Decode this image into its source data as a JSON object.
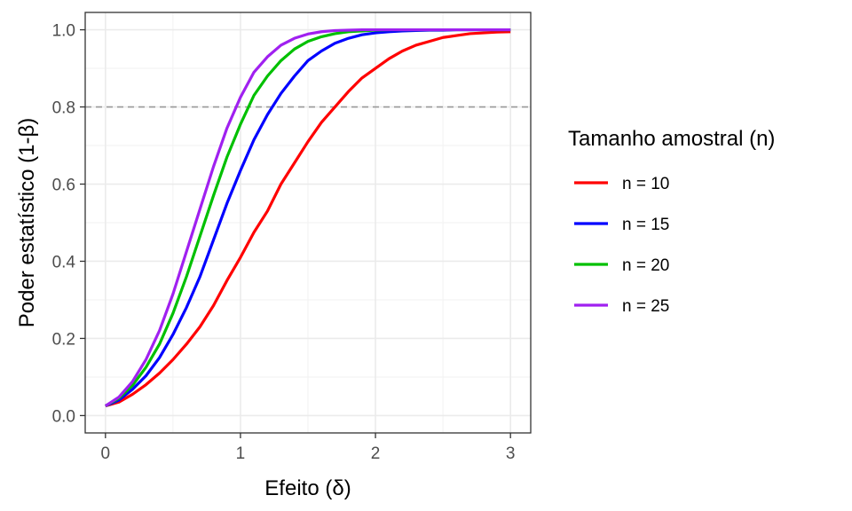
{
  "chart_data": {
    "type": "line",
    "xlabel": "Efeito (δ)",
    "ylabel": "Poder estatístico (1-β)",
    "xlim": [
      -0.15,
      3.15
    ],
    "ylim": [
      -0.045,
      1.045
    ],
    "x_ticks": [
      0,
      1,
      2,
      3
    ],
    "x_tick_labels": [
      "0",
      "1",
      "2",
      "3"
    ],
    "y_ticks": [
      0.0,
      0.2,
      0.4,
      0.6,
      0.8,
      1.0
    ],
    "y_tick_labels": [
      "0.0",
      "0.2",
      "0.4",
      "0.6",
      "0.8",
      "1.0"
    ],
    "grid": true,
    "reference_line": {
      "y": 0.8,
      "style": "dashed",
      "color": "#999999"
    },
    "legend": {
      "title": "Tamanho amostral (n)",
      "position": "right"
    },
    "x": [
      0,
      0.1,
      0.2,
      0.3,
      0.4,
      0.5,
      0.6,
      0.7,
      0.8,
      0.9,
      1.0,
      1.1,
      1.2,
      1.3,
      1.4,
      1.5,
      1.6,
      1.7,
      1.8,
      1.9,
      2.0,
      2.1,
      2.2,
      2.3,
      2.4,
      2.5,
      2.6,
      2.7,
      2.8,
      2.9,
      3.0
    ],
    "series": [
      {
        "name": "n = 10",
        "color": "#ff0000",
        "values": [
          0.025,
          0.035,
          0.055,
          0.08,
          0.11,
          0.145,
          0.185,
          0.23,
          0.285,
          0.35,
          0.41,
          0.475,
          0.53,
          0.6,
          0.655,
          0.71,
          0.76,
          0.8,
          0.84,
          0.875,
          0.9,
          0.925,
          0.945,
          0.96,
          0.97,
          0.98,
          0.985,
          0.99,
          0.992,
          0.994,
          0.995
        ]
      },
      {
        "name": "n = 15",
        "color": "#0000ff",
        "values": [
          0.025,
          0.04,
          0.068,
          0.103,
          0.15,
          0.21,
          0.28,
          0.36,
          0.455,
          0.55,
          0.635,
          0.715,
          0.78,
          0.835,
          0.88,
          0.92,
          0.945,
          0.965,
          0.978,
          0.987,
          0.992,
          0.995,
          0.997,
          0.998,
          0.999,
          0.999,
          1.0,
          1.0,
          1.0,
          1.0,
          1.0
        ]
      },
      {
        "name": "n = 20",
        "color": "#00c000",
        "values": [
          0.025,
          0.045,
          0.078,
          0.125,
          0.185,
          0.265,
          0.36,
          0.465,
          0.57,
          0.67,
          0.755,
          0.83,
          0.88,
          0.92,
          0.95,
          0.97,
          0.982,
          0.99,
          0.995,
          0.997,
          0.999,
          1.0,
          1.0,
          1.0,
          1.0,
          1.0,
          1.0,
          1.0,
          1.0,
          1.0,
          1.0
        ]
      },
      {
        "name": "n = 25",
        "color": "#a020f0",
        "values": [
          0.025,
          0.048,
          0.088,
          0.145,
          0.22,
          0.315,
          0.425,
          0.535,
          0.645,
          0.745,
          0.825,
          0.89,
          0.93,
          0.96,
          0.978,
          0.989,
          0.995,
          0.998,
          0.999,
          1.0,
          1.0,
          1.0,
          1.0,
          1.0,
          1.0,
          1.0,
          1.0,
          1.0,
          1.0,
          1.0,
          1.0
        ]
      }
    ]
  }
}
